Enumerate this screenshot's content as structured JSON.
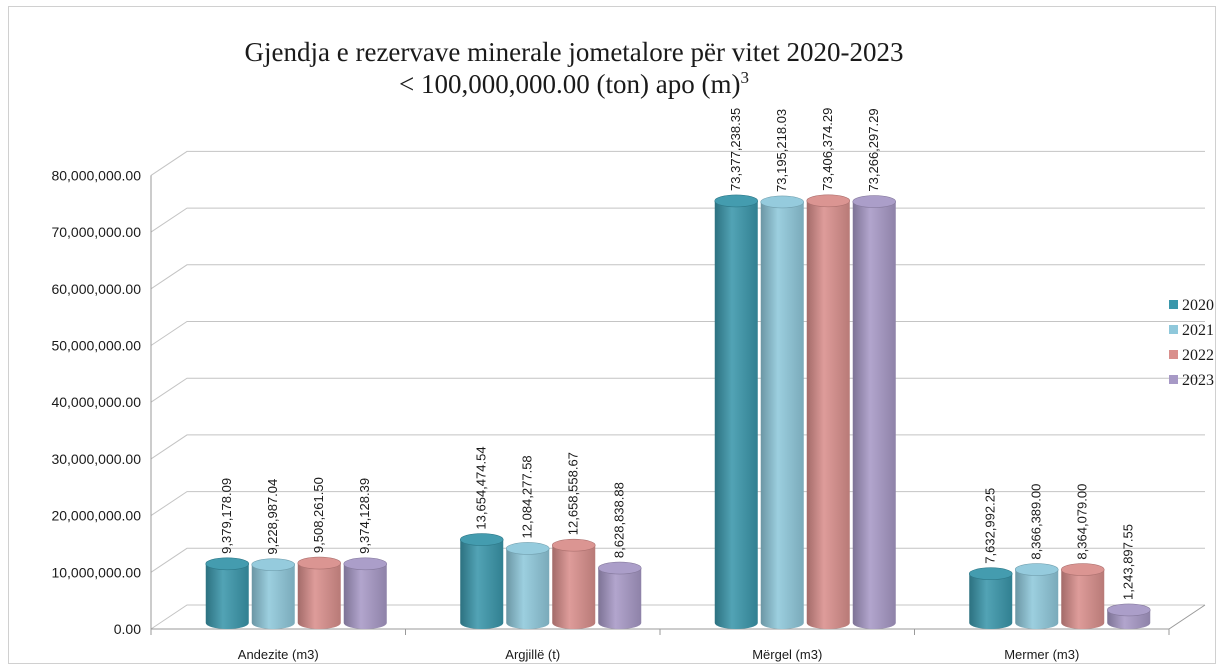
{
  "chart_data": {
    "type": "bar",
    "title_line1": "Gjendja e rezervave minerale jometalore për vitet 2020-2023",
    "title_line2": "< 100,000,000.00 (ton) apo (m)",
    "title_sup": "3",
    "categories": [
      "Andezite (m3)",
      "Argjillë  (t)",
      "Mërgel  (m3)",
      "Mermer (m3)"
    ],
    "series": [
      {
        "name": "2020",
        "color": "#3a97ab",
        "values": [
          9379178.09,
          13654474.54,
          73377238.35,
          7632992.25
        ],
        "labels": [
          "9,379,178.09",
          "13,654,474.54",
          "73,377,238.35",
          "7,632,992.25"
        ]
      },
      {
        "name": "2021",
        "color": "#8fc8db",
        "values": [
          9228987.04,
          12084277.58,
          73195218.03,
          8366389.0
        ],
        "labels": [
          "9,228,987.04",
          "12,084,277.58",
          "73,195,218.03",
          "8,366,389.00"
        ]
      },
      {
        "name": "2022",
        "color": "#d98f8c",
        "values": [
          9508261.5,
          12658558.67,
          73406374.29,
          8364079.0
        ],
        "labels": [
          "9,508,261.50",
          "12,658,558.67",
          "73,406,374.29",
          "8,364,079.00"
        ]
      },
      {
        "name": "2023",
        "color": "#a799c6",
        "values": [
          9374128.39,
          8628838.88,
          73266297.29,
          1243897.55
        ],
        "labels": [
          "9,374,128.39",
          "8,628,838.88",
          "73,266,297.29",
          "1,243,897.55"
        ]
      }
    ],
    "ylim": [
      0,
      80000000
    ],
    "yticks": [
      "0.00",
      "10,000,000.00",
      "20,000,000.00",
      "30,000,000.00",
      "40,000,000.00",
      "50,000,000.00",
      "60,000,000.00",
      "70,000,000.00",
      "80,000,000.00"
    ],
    "grid": true,
    "legend_position": "right"
  }
}
